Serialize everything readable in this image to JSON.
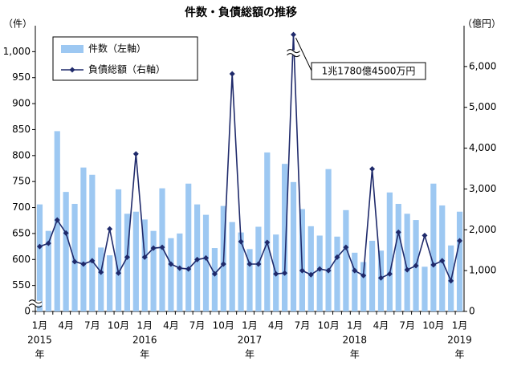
{
  "chart_data": {
    "type": "bar_line",
    "title": "件数・負債総額の推移",
    "y_label": "（件）",
    "y2_label": "（億円）",
    "annotation": "1兆1780億4500万円",
    "categories": [
      "1月",
      null,
      null,
      "4月",
      null,
      null,
      "7月",
      null,
      null,
      "10月",
      null,
      null,
      "1月",
      null,
      null,
      "4月",
      null,
      null,
      "7月",
      null,
      null,
      "10月",
      null,
      null,
      "1月",
      null,
      null,
      "4月",
      null,
      null,
      "7月",
      null,
      null,
      "10月",
      null,
      null,
      "1月",
      null,
      null,
      "4月",
      null,
      null,
      "7月",
      null,
      null,
      "10月",
      null,
      null,
      "1月"
    ],
    "years": [
      "2015",
      null,
      null,
      null,
      null,
      null,
      null,
      null,
      null,
      null,
      null,
      null,
      "2016",
      null,
      null,
      null,
      null,
      null,
      null,
      null,
      null,
      null,
      null,
      null,
      "2017",
      null,
      null,
      null,
      null,
      null,
      null,
      null,
      null,
      null,
      null,
      null,
      "2018",
      null,
      null,
      null,
      null,
      null,
      null,
      null,
      null,
      null,
      null,
      null,
      "2019"
    ],
    "year_suffix": "年",
    "series": [
      {
        "name": "件数（左軸）",
        "color": "#9dc8f2",
        "kind": "bar",
        "axis": "y",
        "values": [
          706,
          655,
          847,
          730,
          707,
          777,
          763,
          623,
          608,
          735,
          688,
          692,
          677,
          655,
          737,
          641,
          650,
          746,
          706,
          686,
          622,
          703,
          672,
          652,
          620,
          663,
          806,
          648,
          784,
          749,
          697,
          664,
          646,
          774,
          644,
          695,
          613,
          595,
          636,
          617,
          729,
          707,
          688,
          676,
          586,
          746,
          704,
          627,
          692
        ]
      },
      {
        "name": "負債総額（右軸）",
        "color": "#1f2a6b",
        "kind": "line",
        "axis": "y2",
        "values": [
          1590,
          1670,
          2240,
          1920,
          1220,
          1160,
          1240,
          960,
          2020,
          940,
          1330,
          3860,
          1330,
          1550,
          1570,
          1160,
          1060,
          1040,
          1270,
          1310,
          920,
          1160,
          5820,
          1710,
          1160,
          1160,
          1690,
          920,
          940,
          11780.45,
          1000,
          900,
          1040,
          1000,
          1330,
          1570,
          1000,
          880,
          3490,
          820,
          920,
          1940,
          1020,
          1120,
          1860,
          1140,
          1240,
          750,
          1730
        ]
      }
    ],
    "ylim": [
      0,
      1050
    ],
    "ybreak": [
      0,
      500
    ],
    "yticks": [
      0,
      550,
      600,
      650,
      700,
      750,
      800,
      850,
      900,
      950,
      {
        "value": 1000,
        "label": "1,000"
      }
    ],
    "y2lim": [
      0,
      12000
    ],
    "y2break": [
      6300,
      11300
    ],
    "y2ticks": [
      0,
      {
        "value": 1000,
        "label": "1,000"
      },
      {
        "value": 2000,
        "label": "2,000"
      },
      {
        "value": 3000,
        "label": "3,000"
      },
      {
        "value": 4000,
        "label": "4,000"
      },
      {
        "value": 5000,
        "label": "5,000"
      },
      {
        "value": 6000,
        "label": "6,000"
      }
    ],
    "annotation_index": 29
  }
}
